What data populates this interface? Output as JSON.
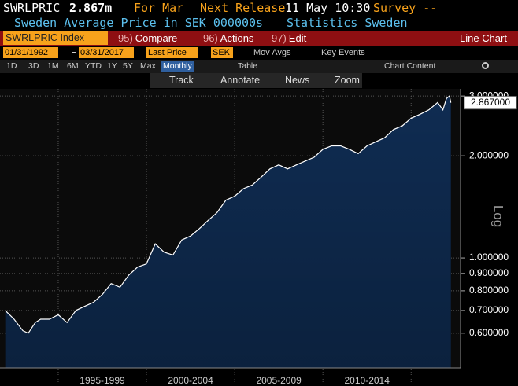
{
  "header": {
    "ticker": "SWRLPRIC",
    "value": "2.867m",
    "period": "For Mar",
    "next_release_label": "Next Release",
    "next_release": "11 May 10:30",
    "survey": "Survey --",
    "description": "Sweden Average Price in SEK 000000s",
    "source": "Statistics Sweden"
  },
  "menu": {
    "security": "SWRLPRIC Index",
    "items": [
      {
        "key": "95)",
        "label": "Compare"
      },
      {
        "key": "96)",
        "label": "Actions"
      },
      {
        "key": "97)",
        "label": "Edit"
      }
    ],
    "view": "Line Chart"
  },
  "controls": {
    "start_date": "01/31/1992",
    "end_date": "03/31/2017",
    "field": "Last Price",
    "currency": "SEK",
    "mov_avgs": "Mov Avgs",
    "key_events": "Key Events"
  },
  "periods": [
    "1D",
    "3D",
    "1M",
    "6M",
    "YTD",
    "1Y",
    "5Y",
    "Max"
  ],
  "frequency": "Monthly",
  "table": "Table",
  "chart_content": "Chart Content",
  "tools": [
    "Track",
    "Annotate",
    "News",
    "Zoom"
  ],
  "chart_data": {
    "type": "line",
    "log_scale": true,
    "grid": true,
    "y_axis_label": "Log",
    "x": [
      1992,
      1992.5,
      1993,
      1993.3,
      1993.7,
      1994,
      1994.5,
      1995,
      1995.5,
      1996,
      1996.5,
      1997,
      1997.5,
      1998,
      1998.5,
      1999,
      1999.5,
      2000,
      2000.5,
      2001,
      2001.5,
      2002,
      2002.5,
      2003,
      2003.5,
      2004,
      2004.5,
      2005,
      2005.5,
      2006,
      2006.5,
      2007,
      2007.5,
      2008,
      2008.5,
      2009,
      2009.5,
      2010,
      2010.5,
      2011,
      2011.5,
      2012,
      2012.5,
      2013,
      2013.5,
      2014,
      2014.5,
      2015,
      2015.5,
      2016,
      2016.5,
      2016.8,
      2017,
      2017.17,
      2017.25
    ],
    "series": [
      {
        "name": "SWRLPRIC",
        "color": "#ffffff",
        "fill": "#0f2c52",
        "values": [
          0.7,
          0.66,
          0.61,
          0.6,
          0.645,
          0.66,
          0.66,
          0.68,
          0.645,
          0.7,
          0.72,
          0.74,
          0.78,
          0.84,
          0.82,
          0.89,
          0.94,
          0.96,
          1.1,
          1.04,
          1.02,
          1.13,
          1.16,
          1.22,
          1.29,
          1.36,
          1.48,
          1.52,
          1.6,
          1.64,
          1.73,
          1.83,
          1.88,
          1.83,
          1.88,
          1.93,
          1.98,
          2.09,
          2.14,
          2.14,
          2.09,
          2.03,
          2.14,
          2.2,
          2.26,
          2.39,
          2.45,
          2.58,
          2.65,
          2.73,
          2.87,
          2.73,
          2.95,
          3.0,
          2.867
        ]
      }
    ],
    "current": {
      "value": 2.867,
      "label": "2.867000"
    },
    "xlim": [
      1991.7,
      2017.8
    ],
    "ylim": [
      0.474,
      3.15
    ],
    "yticks": [
      {
        "value": 0.6,
        "label": "0.600000"
      },
      {
        "value": 0.7,
        "label": "0.700000"
      },
      {
        "value": 0.8,
        "label": "0.800000"
      },
      {
        "value": 0.9,
        "label": "0.900000"
      },
      {
        "value": 1.0,
        "label": "1.000000"
      },
      {
        "value": 2.0,
        "label": "2.000000"
      },
      {
        "value": 3.0,
        "label": "3.000000"
      }
    ],
    "xticks": [
      {
        "value": 1997.5,
        "label": "1995-1999"
      },
      {
        "value": 2002.5,
        "label": "2000-2004"
      },
      {
        "value": 2007.5,
        "label": "2005-2009"
      },
      {
        "value": 2012.5,
        "label": "2010-2014"
      }
    ],
    "xgrid": [
      1995,
      2000,
      2005,
      2010,
      2015
    ]
  }
}
